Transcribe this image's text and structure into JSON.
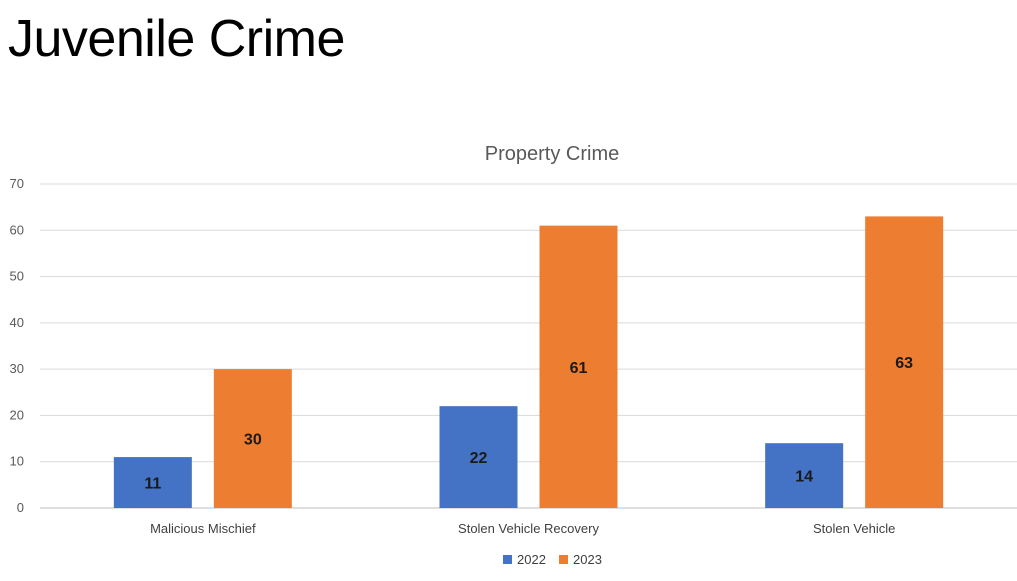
{
  "slide": {
    "title": "Juvenile Crime"
  },
  "chart_data": {
    "type": "bar",
    "title": "Property Crime",
    "categories": [
      "Malicious Mischief",
      "Stolen Vehicle Recovery",
      "Stolen Vehicle"
    ],
    "series": [
      {
        "name": "2022",
        "values": [
          11,
          22,
          14
        ],
        "color": "#4472C4"
      },
      {
        "name": "2023",
        "values": [
          30,
          61,
          63
        ],
        "color": "#ED7D31"
      }
    ],
    "ylim": [
      0,
      70
    ],
    "yticks": [
      0,
      10,
      20,
      30,
      40,
      50,
      60,
      70
    ],
    "grid": true,
    "legend": "bottom-center",
    "data_labels": true
  }
}
